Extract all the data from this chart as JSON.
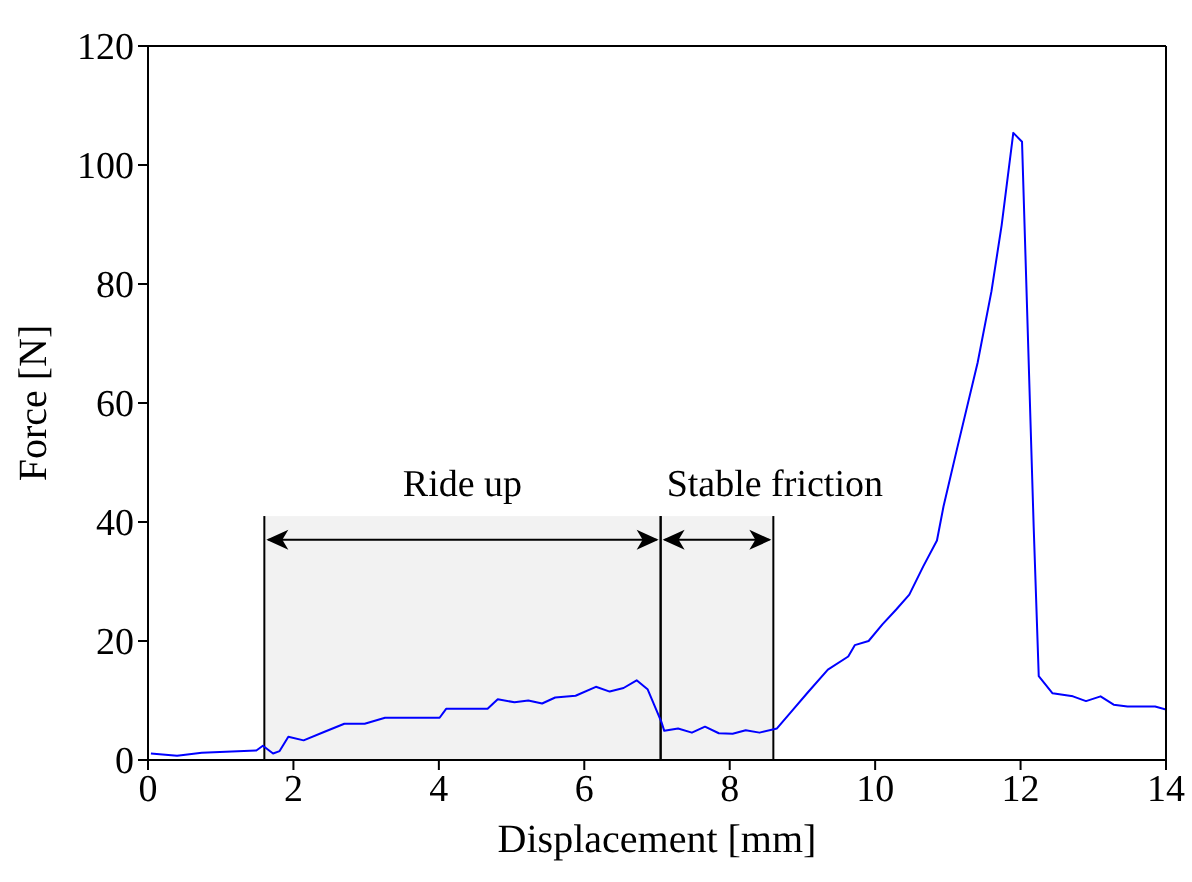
{
  "chart_data": {
    "type": "line",
    "xlabel": "Displacement [mm]",
    "ylabel": "Force [N]",
    "x": [
      0.04,
      0.4,
      0.74,
      1.49,
      1.58,
      1.72,
      1.81,
      1.93,
      2.14,
      2.42,
      2.7,
      2.98,
      3.26,
      4.01,
      4.1,
      4.67,
      4.81,
      5.04,
      5.23,
      5.42,
      5.6,
      5.88,
      6.16,
      6.35,
      6.54,
      6.72,
      6.87,
      7.06,
      7.1,
      7.29,
      7.48,
      7.66,
      7.85,
      8.04,
      8.22,
      8.41,
      8.65,
      8.88,
      9.07,
      9.35,
      9.63,
      9.72,
      9.91,
      10.1,
      10.29,
      10.47,
      10.66,
      10.85,
      10.94,
      11.13,
      11.41,
      11.6,
      11.74,
      11.9,
      12.02,
      12.18,
      12.25,
      12.44,
      12.72,
      12.9,
      13.1,
      13.28,
      13.47,
      13.85,
      14.0
    ],
    "series": [
      {
        "color": "#0000ff",
        "values": [
          1.1,
          0.7,
          1.2,
          1.6,
          2.4,
          1.1,
          1.5,
          3.9,
          3.3,
          4.7,
          6.1,
          6.1,
          7.1,
          7.1,
          8.6,
          8.6,
          10.2,
          9.7,
          10.0,
          9.5,
          10.5,
          10.8,
          12.3,
          11.5,
          12.1,
          13.4,
          11.9,
          6.4,
          4.9,
          5.3,
          4.6,
          5.6,
          4.5,
          4.4,
          5.0,
          4.6,
          5.3,
          8.6,
          11.3,
          15.2,
          17.4,
          19.3,
          20.0,
          22.8,
          25.3,
          27.8,
          32.5,
          36.9,
          42.6,
          52.5,
          66.8,
          78.8,
          89.9,
          105.4,
          103.9,
          39.3,
          14.1,
          11.2,
          10.7,
          9.9,
          10.7,
          9.3,
          9.0,
          9.0,
          8.5
        ]
      }
    ],
    "xlim": [
      0,
      14
    ],
    "ylim": [
      0,
      120
    ],
    "xticks": [
      0,
      2,
      4,
      6,
      8,
      10,
      12,
      14
    ],
    "yticks": [
      0,
      20,
      40,
      60,
      80,
      100,
      120
    ],
    "bands": [
      {
        "axis": "x",
        "from": 1.6,
        "to": 7.05,
        "label": "Ride up"
      },
      {
        "axis": "x",
        "from": 7.05,
        "to": 8.6,
        "label": "Stable friction"
      }
    ],
    "grid": false,
    "legend": false,
    "marker": "none",
    "line_style": "solid"
  }
}
